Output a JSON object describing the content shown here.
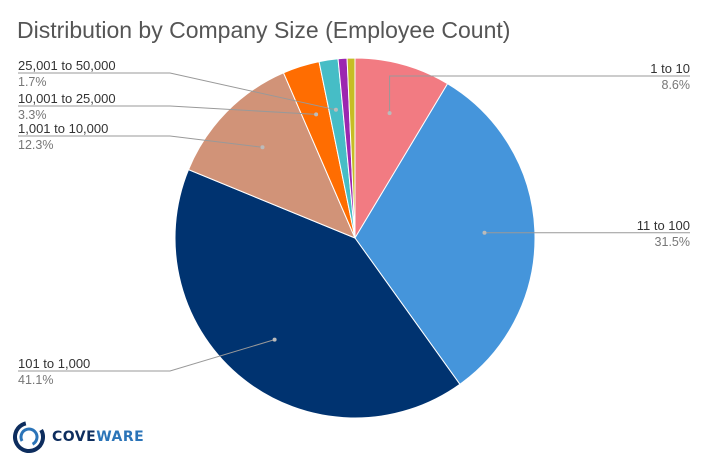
{
  "chart_data": {
    "type": "pie",
    "title": "Distribution by Company Size (Employee Count)",
    "slices": [
      {
        "label": "1 to 10",
        "percent_label": "8.6%",
        "value": 8.6,
        "color": "#f27b82"
      },
      {
        "label": "11 to 100",
        "percent_label": "31.5%",
        "value": 31.5,
        "color": "#4595db"
      },
      {
        "label": "101 to 1,000",
        "percent_label": "41.1%",
        "value": 41.1,
        "color": "#003370"
      },
      {
        "label": "1,001 to 10,000",
        "percent_label": "12.3%",
        "value": 12.3,
        "color": "#d19378"
      },
      {
        "label": "10,001 to 25,000",
        "percent_label": "3.3%",
        "value": 3.3,
        "color": "#ff6d01"
      },
      {
        "label": "25,001 to 50,000",
        "percent_label": "1.7%",
        "value": 1.7,
        "color": "#46bdc6"
      },
      {
        "label": "",
        "percent_label": "",
        "value": 0.8,
        "color": "#9c27b0"
      },
      {
        "label": "",
        "percent_label": "",
        "value": 0.7,
        "color": "#c6bd25"
      }
    ]
  },
  "logo": {
    "text_dark": "COVE",
    "text_light": "WARE"
  }
}
